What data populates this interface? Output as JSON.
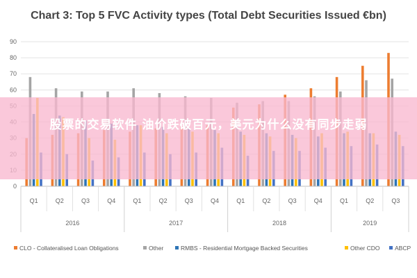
{
  "colors": {
    "CLO": "#ed7d31",
    "Other": "#a5a5a5",
    "RMBS": "#2e75b6",
    "OtherCDO": "#ffc000",
    "ABCP": "#4472c4",
    "overlay": "#f9b9d0"
  },
  "overlay": {
    "text": "股票的交易软件 油价跌破百元，美元为什么没有同步走弱"
  },
  "chart_data": {
    "type": "bar",
    "title": "Chart 3: Top 5 FVC Activity types (Total Debt Securities Issued €bn)",
    "xlabel": "",
    "ylabel": "",
    "ylim": [
      0,
      90
    ],
    "yticks": [
      0,
      10,
      20,
      30,
      40,
      50,
      60,
      70,
      80,
      90
    ],
    "grid": true,
    "legend_position": "bottom",
    "categories": [
      "Q1",
      "Q2",
      "Q3",
      "Q4",
      "Q1",
      "Q2",
      "Q3",
      "Q4",
      "Q1",
      "Q2",
      "Q3",
      "Q4",
      "Q1",
      "Q2",
      "Q3"
    ],
    "years": [
      {
        "label": "2016",
        "count": 4
      },
      {
        "label": "2017",
        "count": 4
      },
      {
        "label": "2018",
        "count": 4
      },
      {
        "label": "2019",
        "count": 3
      }
    ],
    "series": [
      {
        "name": "CLO - Collateralised Loan Obligations",
        "key": "CLO",
        "values": [
          30,
          32,
          33,
          35,
          34,
          36,
          37,
          38,
          49,
          51,
          57,
          61,
          68,
          75,
          83
        ]
      },
      {
        "name": "Other",
        "key": "Other",
        "values": [
          68,
          61,
          59,
          59,
          61,
          58,
          56,
          55,
          52,
          53,
          53,
          56,
          59,
          66,
          67
        ]
      },
      {
        "name": "RMBS - Residential Mortgage Backed Securities",
        "key": "RMBS",
        "values": [
          45,
          44,
          41,
          39,
          38,
          37,
          36,
          35,
          34,
          33,
          32,
          31,
          33,
          33,
          34
        ]
      },
      {
        "name": "Other CDO",
        "key": "OtherCDO",
        "values": [
          55,
          43,
          30,
          29,
          38,
          33,
          34,
          33,
          32,
          31,
          30,
          33,
          34,
          33,
          32
        ]
      },
      {
        "name": "ABCP",
        "key": "ABCP",
        "values": [
          21,
          20,
          16,
          18,
          21,
          20,
          21,
          24,
          19,
          22,
          22,
          24,
          25,
          26,
          25
        ]
      }
    ]
  }
}
